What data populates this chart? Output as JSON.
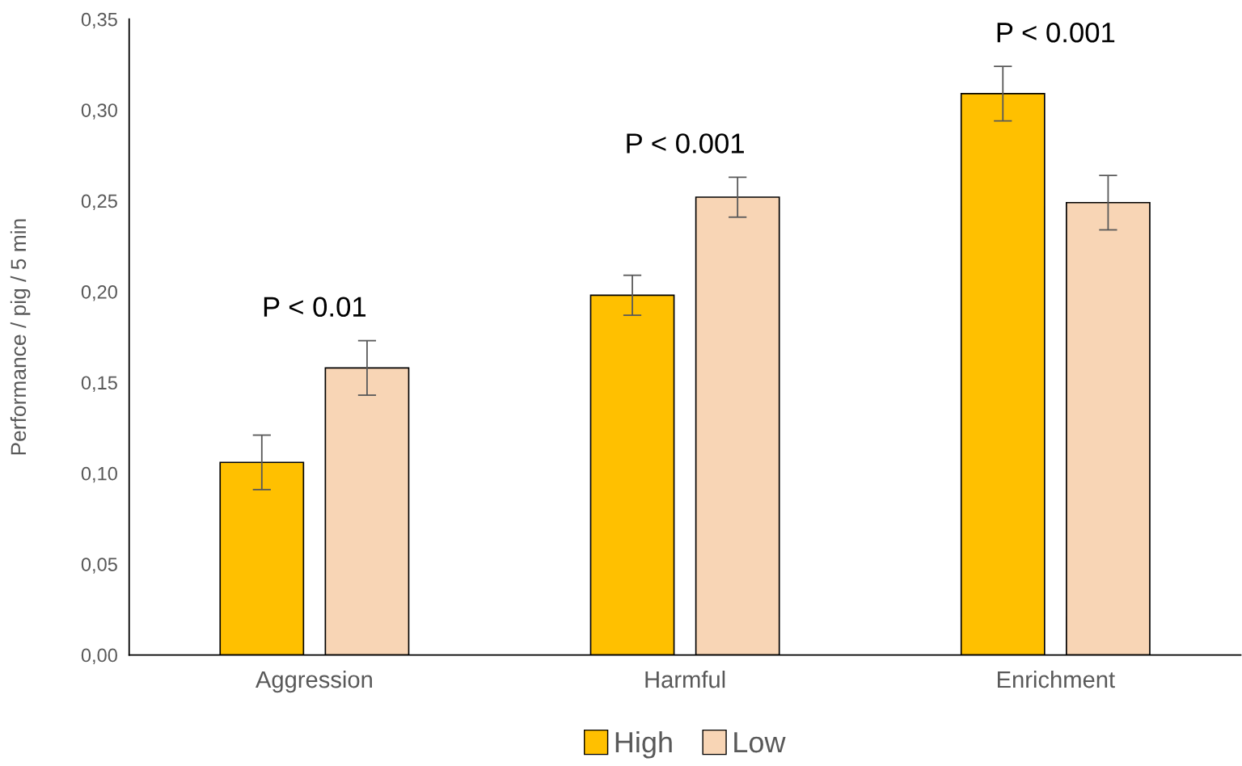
{
  "chart_data": {
    "type": "bar",
    "ylabel": "Performance / pig / 5 min",
    "categories": [
      "Aggression",
      "Harmful",
      "Enrichment"
    ],
    "series": [
      {
        "name": "High",
        "color": "#ffc000",
        "values": [
          0.106,
          0.198,
          0.309
        ],
        "errors": [
          0.015,
          0.011,
          0.015
        ]
      },
      {
        "name": "Low",
        "color": "#f8d5b5",
        "values": [
          0.158,
          0.252,
          0.249
        ],
        "errors": [
          0.015,
          0.011,
          0.015
        ]
      }
    ],
    "ylim": [
      0,
      0.35
    ],
    "yticks": [
      {
        "value": 0,
        "label": "0,00"
      },
      {
        "value": 0.05,
        "label": "0,05"
      },
      {
        "value": 0.1,
        "label": "0,10"
      },
      {
        "value": 0.15,
        "label": "0,15"
      },
      {
        "value": 0.2,
        "label": "0,20"
      },
      {
        "value": 0.25,
        "label": "0,25"
      },
      {
        "value": 0.3,
        "label": "0,30"
      },
      {
        "value": 0.35,
        "label": "0,35"
      }
    ],
    "annotations": [
      "P < 0.01",
      "P < 0.001",
      "P < 0.001"
    ],
    "grid": false,
    "legend": "bottom"
  }
}
